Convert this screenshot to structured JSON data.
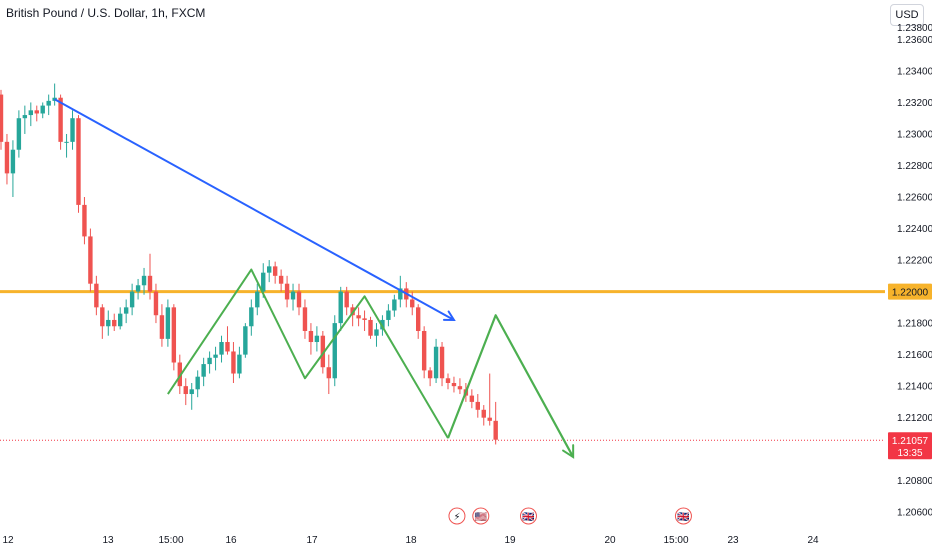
{
  "header": {
    "title": "British Pound / U.S. Dollar, 1h, FXCM",
    "currency_label": "USD"
  },
  "colors": {
    "up": "#26a69a",
    "down": "#ef5350",
    "level": "#f7b32b",
    "trend": "#2962ff",
    "pattern": "#4caf50",
    "price_badge": "#f23645",
    "event_icon_red": "#ef5350"
  },
  "chart_data": {
    "type": "candlestick",
    "symbol": "GBPUSD",
    "timeframe": "1h",
    "ylim": [
      1.205,
      1.2385
    ],
    "y_ticks": [
      "1.23600",
      "1.23400",
      "1.23200",
      "1.23000",
      "1.22800",
      "1.22600",
      "1.22400",
      "1.22200",
      "1.21800",
      "1.21600",
      "1.21400",
      "1.21200",
      "1.20800",
      "1.20600"
    ],
    "y_tick_partial": "1.23800",
    "x_ticks": [
      "12",
      "13",
      "15:00",
      "16",
      "17",
      "18",
      "19",
      "20",
      "15:00",
      "23",
      "24"
    ],
    "horizontal_level": {
      "value": 1.22,
      "label": "1.22000"
    },
    "current_price": {
      "value": 1.21057,
      "label": "1.21057",
      "countdown": "13:35"
    },
    "candle_ohlc": [
      [
        1.2325,
        1.2328,
        1.229,
        1.2295
      ],
      [
        1.2295,
        1.23,
        1.2268,
        1.2275
      ],
      [
        1.2275,
        1.2296,
        1.226,
        1.229
      ],
      [
        1.229,
        1.2315,
        1.2285,
        1.231
      ],
      [
        1.231,
        1.2318,
        1.23,
        1.2312
      ],
      [
        1.2312,
        1.232,
        1.2305,
        1.2315
      ],
      [
        1.2315,
        1.2318,
        1.2308,
        1.2313
      ],
      [
        1.2313,
        1.232,
        1.231,
        1.2318
      ],
      [
        1.2318,
        1.2325,
        1.2312,
        1.2321
      ],
      [
        1.2321,
        1.2332,
        1.2318,
        1.2323
      ],
      [
        1.2323,
        1.2325,
        1.229,
        1.2295
      ],
      [
        1.2295,
        1.23,
        1.2285,
        1.2295
      ],
      [
        1.2295,
        1.2315,
        1.229,
        1.231
      ],
      [
        1.231,
        1.2312,
        1.225,
        1.2255
      ],
      [
        1.2255,
        1.226,
        1.223,
        1.2235
      ],
      [
        1.2235,
        1.224,
        1.22,
        1.2205
      ],
      [
        1.2205,
        1.221,
        1.2185,
        1.219
      ],
      [
        1.219,
        1.2192,
        1.217,
        1.2178
      ],
      [
        1.2178,
        1.2188,
        1.2172,
        1.2182
      ],
      [
        1.2182,
        1.2186,
        1.2175,
        1.2178
      ],
      [
        1.2178,
        1.219,
        1.2176,
        1.2186
      ],
      [
        1.2186,
        1.2195,
        1.218,
        1.219
      ],
      [
        1.219,
        1.2205,
        1.2185,
        1.22
      ],
      [
        1.22,
        1.2208,
        1.2195,
        1.2204
      ],
      [
        1.2204,
        1.2215,
        1.2198,
        1.221
      ],
      [
        1.221,
        1.2224,
        1.2195,
        1.22
      ],
      [
        1.22,
        1.2205,
        1.218,
        1.2185
      ],
      [
        1.2185,
        1.2192,
        1.2165,
        1.217
      ],
      [
        1.217,
        1.2195,
        1.2165,
        1.219
      ],
      [
        1.219,
        1.2192,
        1.215,
        1.2155
      ],
      [
        1.2155,
        1.216,
        1.2135,
        1.214
      ],
      [
        1.214,
        1.2145,
        1.2128,
        1.2135
      ],
      [
        1.2135,
        1.2142,
        1.2125,
        1.2138
      ],
      [
        1.2138,
        1.215,
        1.2133,
        1.2146
      ],
      [
        1.2146,
        1.2158,
        1.214,
        1.2154
      ],
      [
        1.2154,
        1.2162,
        1.2148,
        1.2158
      ],
      [
        1.2158,
        1.2165,
        1.215,
        1.216
      ],
      [
        1.216,
        1.2172,
        1.2155,
        1.2168
      ],
      [
        1.2168,
        1.2178,
        1.216,
        1.2162
      ],
      [
        1.2162,
        1.2168,
        1.2142,
        1.2148
      ],
      [
        1.2148,
        1.2165,
        1.2145,
        1.216
      ],
      [
        1.216,
        1.218,
        1.2158,
        1.2178
      ],
      [
        1.2178,
        1.2195,
        1.2172,
        1.219
      ],
      [
        1.219,
        1.2205,
        1.2185,
        1.22
      ],
      [
        1.22,
        1.2218,
        1.2196,
        1.2212
      ],
      [
        1.2212,
        1.222,
        1.2206,
        1.2216
      ],
      [
        1.2216,
        1.2219,
        1.2205,
        1.221
      ],
      [
        1.221,
        1.2214,
        1.22,
        1.2205
      ],
      [
        1.2205,
        1.221,
        1.219,
        1.2195
      ],
      [
        1.2195,
        1.2205,
        1.2188,
        1.22
      ],
      [
        1.22,
        1.2205,
        1.2185,
        1.219
      ],
      [
        1.219,
        1.2195,
        1.217,
        1.2175
      ],
      [
        1.2175,
        1.218,
        1.216,
        1.2168
      ],
      [
        1.2168,
        1.2178,
        1.2162,
        1.2172
      ],
      [
        1.2172,
        1.2175,
        1.2148,
        1.2152
      ],
      [
        1.2152,
        1.216,
        1.2135,
        1.2145
      ],
      [
        1.2145,
        1.2185,
        1.214,
        1.218
      ],
      [
        1.218,
        1.2203,
        1.2175,
        1.22
      ],
      [
        1.22,
        1.2203,
        1.2185,
        1.219
      ],
      [
        1.219,
        1.2192,
        1.2178,
        1.2185
      ],
      [
        1.2185,
        1.219,
        1.2178,
        1.2183
      ],
      [
        1.2183,
        1.2188,
        1.2175,
        1.2182
      ],
      [
        1.2182,
        1.2184,
        1.217,
        1.2172
      ],
      [
        1.2172,
        1.218,
        1.2165,
        1.2176
      ],
      [
        1.2176,
        1.2185,
        1.2172,
        1.2182
      ],
      [
        1.2182,
        1.2192,
        1.2178,
        1.2188
      ],
      [
        1.2188,
        1.2198,
        1.2184,
        1.2195
      ],
      [
        1.2195,
        1.221,
        1.219,
        1.2202
      ],
      [
        1.2202,
        1.2206,
        1.219,
        1.2195
      ],
      [
        1.2195,
        1.22,
        1.2185,
        1.219
      ],
      [
        1.219,
        1.2192,
        1.217,
        1.2175
      ],
      [
        1.2175,
        1.2178,
        1.2145,
        1.215
      ],
      [
        1.215,
        1.2152,
        1.214,
        1.2145
      ],
      [
        1.2145,
        1.217,
        1.2142,
        1.2165
      ],
      [
        1.2165,
        1.2168,
        1.214,
        1.2145
      ],
      [
        1.2145,
        1.2148,
        1.2138,
        1.2142
      ],
      [
        1.2142,
        1.2146,
        1.2136,
        1.214
      ],
      [
        1.214,
        1.2145,
        1.2135,
        1.2138
      ],
      [
        1.2138,
        1.2142,
        1.213,
        1.2134
      ],
      [
        1.2134,
        1.2138,
        1.2126,
        1.213
      ],
      [
        1.213,
        1.2135,
        1.212,
        1.2125
      ],
      [
        1.2125,
        1.2128,
        1.2115,
        1.212
      ],
      [
        1.212,
        1.2148,
        1.2115,
        1.2118
      ],
      [
        1.2118,
        1.213,
        1.2103,
        1.2106
      ]
    ],
    "trendline": {
      "from": [
        9,
        1.2322
      ],
      "to": [
        76,
        1.2182
      ],
      "arrowhead": true
    },
    "zigzag": [
      [
        28,
        1.2135
      ],
      [
        42,
        1.2214
      ],
      [
        51,
        1.2145
      ],
      [
        61,
        1.2197
      ],
      [
        75,
        1.2107
      ]
    ],
    "projection": {
      "points": [
        [
          75,
          1.2107
        ],
        [
          83,
          1.2185
        ],
        [
          96,
          1.2095
        ]
      ],
      "arrowhead": true
    },
    "event_icons": [
      {
        "name": "flash-icon",
        "slot": 76,
        "glyph": "⚡"
      },
      {
        "name": "us-flag-icon",
        "slot": 80,
        "glyph": "🇺🇸"
      },
      {
        "name": "uk-flag-icon",
        "slot": 88,
        "glyph": "🇬🇧"
      },
      {
        "name": "uk-flag-icon",
        "slot": 114,
        "glyph": "🇬🇧"
      }
    ]
  }
}
